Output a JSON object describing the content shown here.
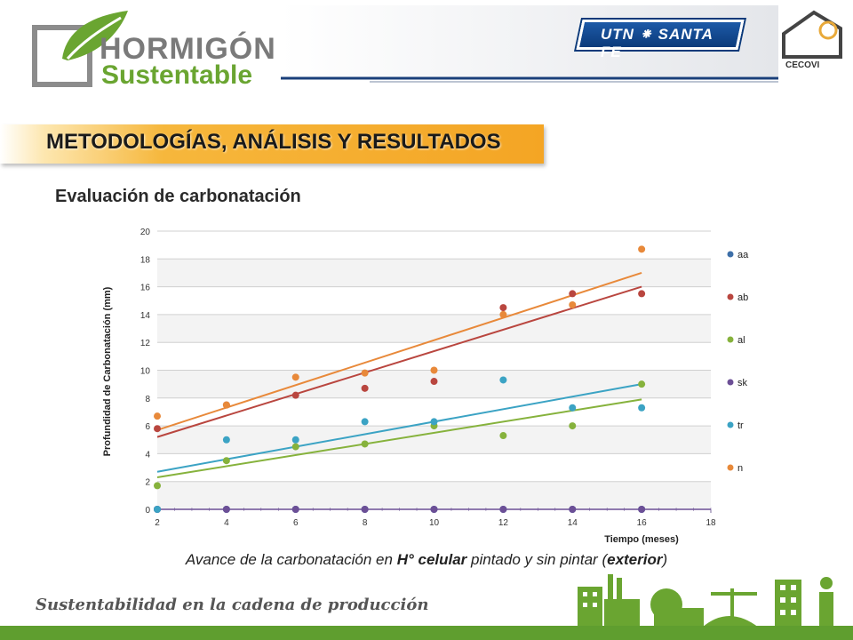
{
  "header": {
    "logo_line1": "HORMIGÓN",
    "logo_line2": "Sustentable",
    "utn_label": "UTN ⁕ SANTA FE",
    "cecovi_label": "CECOVI"
  },
  "section_title": "METODOLOGÍAS, ANÁLISIS Y RESULTADOS",
  "subtitle": "Evaluación de carbonatación",
  "caption": {
    "part1": "Avance de la carbonatación en ",
    "part2": "H° celular",
    "part3": " pintado y sin pintar (",
    "part4": "exterior",
    "part5": ")"
  },
  "tagline": "Sustentabilidad en la cadena de producción",
  "colors": {
    "accent_orange": "#f4a524",
    "footer_green": "#5f9e2f",
    "brand_green": "#6aa531"
  },
  "chart_data": {
    "type": "scatter",
    "title": "",
    "xlabel": "Tiempo (meses)",
    "ylabel": "Profundidad de Carbonatación  (mm)",
    "xlim": [
      2,
      18
    ],
    "ylim": [
      0,
      20
    ],
    "xticks": [
      2,
      4,
      6,
      8,
      10,
      12,
      14,
      16,
      18
    ],
    "yticks": [
      0,
      2,
      4,
      6,
      8,
      10,
      12,
      14,
      16,
      18,
      20
    ],
    "grid": true,
    "legend_position": "right",
    "series": [
      {
        "name": "aa",
        "color": "#3d6fa8",
        "points": [
          [
            2,
            0
          ],
          [
            4,
            0
          ],
          [
            6,
            0
          ],
          [
            8,
            0
          ],
          [
            10,
            0
          ],
          [
            12,
            0
          ],
          [
            14,
            0
          ],
          [
            16,
            0
          ]
        ]
      },
      {
        "name": "ab",
        "color": "#b9463f",
        "points": [
          [
            2,
            5.8
          ],
          [
            4,
            7.5
          ],
          [
            6,
            8.2
          ],
          [
            8,
            8.7
          ],
          [
            10,
            9.2
          ],
          [
            12,
            14.5
          ],
          [
            14,
            15.5
          ],
          [
            16,
            15.5
          ]
        ],
        "trend": [
          [
            2,
            5.2
          ],
          [
            16,
            16.0
          ]
        ]
      },
      {
        "name": "al",
        "color": "#86b23c",
        "points": [
          [
            2,
            1.7
          ],
          [
            4,
            3.5
          ],
          [
            6,
            4.5
          ],
          [
            8,
            4.7
          ],
          [
            10,
            6.0
          ],
          [
            12,
            5.3
          ],
          [
            14,
            6.0
          ],
          [
            16,
            9.0
          ]
        ],
        "trend": [
          [
            2,
            2.3
          ],
          [
            16,
            7.9
          ]
        ]
      },
      {
        "name": "sk",
        "color": "#6c4f96",
        "points": [
          [
            2,
            0
          ],
          [
            4,
            0
          ],
          [
            6,
            0
          ],
          [
            8,
            0
          ],
          [
            10,
            0
          ],
          [
            12,
            0
          ],
          [
            14,
            0
          ],
          [
            16,
            0
          ]
        ]
      },
      {
        "name": "tr",
        "color": "#3ba3c4",
        "points": [
          [
            2,
            0
          ],
          [
            4,
            5.0
          ],
          [
            6,
            5.0
          ],
          [
            8,
            6.3
          ],
          [
            10,
            6.3
          ],
          [
            12,
            9.3
          ],
          [
            14,
            7.3
          ],
          [
            16,
            7.3
          ]
        ],
        "trend": [
          [
            2,
            2.7
          ],
          [
            16,
            9.0
          ]
        ]
      },
      {
        "name": "n",
        "color": "#e8893a",
        "points": [
          [
            2,
            6.7
          ],
          [
            4,
            7.5
          ],
          [
            6,
            9.5
          ],
          [
            8,
            9.8
          ],
          [
            10,
            10.0
          ],
          [
            12,
            14.0
          ],
          [
            14,
            14.7
          ],
          [
            16,
            18.7
          ]
        ],
        "trend": [
          [
            2,
            5.7
          ],
          [
            16,
            17.0
          ]
        ]
      }
    ]
  }
}
